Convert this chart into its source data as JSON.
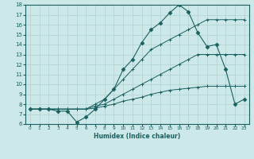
{
  "xlabel": "Humidex (Indice chaleur)",
  "bg_color": "#cde8e8",
  "line_color": "#1a6060",
  "grid_color": "#b0d0d0",
  "xlim": [
    -0.5,
    23.5
  ],
  "ylim": [
    6,
    18
  ],
  "xticks": [
    0,
    1,
    2,
    3,
    4,
    5,
    6,
    7,
    8,
    9,
    10,
    11,
    12,
    13,
    14,
    15,
    16,
    17,
    18,
    19,
    20,
    21,
    22,
    23
  ],
  "yticks": [
    6,
    7,
    8,
    9,
    10,
    11,
    12,
    13,
    14,
    15,
    16,
    17,
    18
  ],
  "lines": [
    {
      "x": [
        0,
        1,
        2,
        3,
        4,
        5,
        6,
        7,
        8,
        9,
        10,
        11,
        12,
        13,
        14,
        15,
        16,
        17,
        18,
        19,
        20,
        21,
        22,
        23
      ],
      "y": [
        7.5,
        7.5,
        7.5,
        7.5,
        7.5,
        7.5,
        7.5,
        8.0,
        8.5,
        9.5,
        10.5,
        11.5,
        12.5,
        13.5,
        14.0,
        14.5,
        15.0,
        15.5,
        16.0,
        16.5,
        16.5,
        16.5,
        16.5,
        16.5
      ],
      "marker": "+"
    },
    {
      "x": [
        0,
        1,
        2,
        3,
        4,
        5,
        6,
        7,
        8,
        9,
        10,
        11,
        12,
        13,
        14,
        15,
        16,
        17,
        18,
        19,
        20,
        21,
        22,
        23
      ],
      "y": [
        7.5,
        7.5,
        7.5,
        7.5,
        7.5,
        7.5,
        7.5,
        7.8,
        8.0,
        8.5,
        9.0,
        9.5,
        10.0,
        10.5,
        11.0,
        11.5,
        12.0,
        12.5,
        13.0,
        13.0,
        13.0,
        13.0,
        13.0,
        13.0
      ],
      "marker": "+"
    },
    {
      "x": [
        0,
        1,
        2,
        3,
        4,
        5,
        6,
        7,
        8,
        9,
        10,
        11,
        12,
        13,
        14,
        15,
        16,
        17,
        18,
        19,
        20,
        21,
        22,
        23
      ],
      "y": [
        7.5,
        7.5,
        7.5,
        7.5,
        7.5,
        7.5,
        7.5,
        7.6,
        7.8,
        8.0,
        8.3,
        8.5,
        8.7,
        9.0,
        9.2,
        9.4,
        9.5,
        9.6,
        9.7,
        9.8,
        9.8,
        9.8,
        9.8,
        9.8
      ],
      "marker": "+"
    },
    {
      "x": [
        0,
        1,
        2,
        3,
        4,
        5,
        6,
        7,
        8,
        9,
        10,
        11,
        12,
        13,
        14,
        15,
        16,
        17,
        18,
        19,
        20,
        21,
        22,
        23
      ],
      "y": [
        7.5,
        7.5,
        7.5,
        7.3,
        7.3,
        6.2,
        6.7,
        7.5,
        8.5,
        9.5,
        11.5,
        12.5,
        14.2,
        15.5,
        16.2,
        17.2,
        18.0,
        17.3,
        15.2,
        13.8,
        14.0,
        11.5,
        8.0,
        8.5
      ],
      "marker": "D"
    }
  ],
  "figsize": [
    3.2,
    2.0
  ],
  "dpi": 100
}
